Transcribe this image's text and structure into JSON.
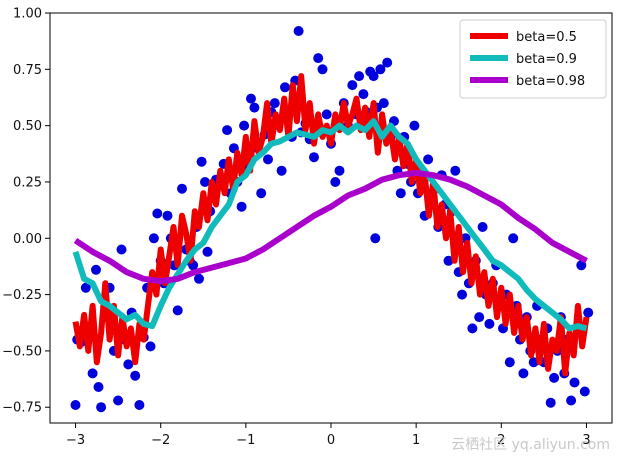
{
  "chart_data": {
    "type": "scatter",
    "xlim": [
      -3.3,
      3.3
    ],
    "ylim": [
      -0.82,
      1.0
    ],
    "xticks": [
      -3,
      -2,
      -1,
      0,
      1,
      2,
      3
    ],
    "xtick_labels": [
      "−3",
      "−2",
      "−1",
      "0",
      "1",
      "2",
      "3"
    ],
    "yticks": [
      -0.75,
      -0.5,
      -0.25,
      0.0,
      0.25,
      0.5,
      0.75,
      1.0
    ],
    "ytick_labels": [
      "−0.75",
      "−0.50",
      "−0.25",
      "0.00",
      "0.25",
      "0.50",
      "0.75",
      "1.00"
    ],
    "grid": false,
    "legend_position": "top-right",
    "scatter_color": "#0000dd",
    "scatter": [
      {
        "x": -3.0,
        "y": -0.74
      },
      {
        "x": -2.98,
        "y": -0.45
      },
      {
        "x": -2.93,
        "y": -0.46
      },
      {
        "x": -2.88,
        "y": -0.22
      },
      {
        "x": -2.8,
        "y": -0.6
      },
      {
        "x": -2.76,
        "y": -0.14
      },
      {
        "x": -2.73,
        "y": -0.66
      },
      {
        "x": -2.7,
        "y": -0.75
      },
      {
        "x": -2.66,
        "y": -0.35
      },
      {
        "x": -2.6,
        "y": -0.22
      },
      {
        "x": -2.55,
        "y": -0.5
      },
      {
        "x": -2.5,
        "y": -0.72
      },
      {
        "x": -2.46,
        "y": -0.05
      },
      {
        "x": -2.42,
        "y": -0.45
      },
      {
        "x": -2.38,
        "y": -0.56
      },
      {
        "x": -2.34,
        "y": -0.33
      },
      {
        "x": -2.3,
        "y": -0.61
      },
      {
        "x": -2.25,
        "y": -0.74
      },
      {
        "x": -2.2,
        "y": -0.44
      },
      {
        "x": -2.16,
        "y": -0.22
      },
      {
        "x": -2.12,
        "y": -0.48
      },
      {
        "x": -2.08,
        "y": 0.0
      },
      {
        "x": -2.04,
        "y": 0.11
      },
      {
        "x": -2.0,
        "y": -0.1
      },
      {
        "x": -1.96,
        "y": -0.2
      },
      {
        "x": -1.92,
        "y": 0.1
      },
      {
        "x": -1.88,
        "y": 0.0
      },
      {
        "x": -1.84,
        "y": -0.12
      },
      {
        "x": -1.8,
        "y": -0.32
      },
      {
        "x": -1.75,
        "y": 0.22
      },
      {
        "x": -1.7,
        "y": -0.05
      },
      {
        "x": -1.66,
        "y": -0.1
      },
      {
        "x": -1.62,
        "y": -0.12
      },
      {
        "x": -1.58,
        "y": 0.05
      },
      {
        "x": -1.55,
        "y": -0.18
      },
      {
        "x": -1.52,
        "y": 0.34
      },
      {
        "x": -1.48,
        "y": 0.25
      },
      {
        "x": -1.45,
        "y": -0.06
      },
      {
        "x": -1.42,
        "y": 0.12
      },
      {
        "x": -1.38,
        "y": 0.18
      },
      {
        "x": -1.35,
        "y": 0.26
      },
      {
        "x": -1.3,
        "y": 0.25
      },
      {
        "x": -1.26,
        "y": 0.33
      },
      {
        "x": -1.22,
        "y": 0.48
      },
      {
        "x": -1.18,
        "y": 0.2
      },
      {
        "x": -1.14,
        "y": 0.4
      },
      {
        "x": -1.1,
        "y": 0.25
      },
      {
        "x": -1.05,
        "y": 0.14
      },
      {
        "x": -1.02,
        "y": 0.5
      },
      {
        "x": -0.98,
        "y": 0.32
      },
      {
        "x": -0.94,
        "y": 0.62
      },
      {
        "x": -0.9,
        "y": 0.58
      },
      {
        "x": -0.86,
        "y": 0.4
      },
      {
        "x": -0.82,
        "y": 0.2
      },
      {
        "x": -0.78,
        "y": 0.46
      },
      {
        "x": -0.74,
        "y": 0.35
      },
      {
        "x": -0.7,
        "y": 0.56
      },
      {
        "x": -0.66,
        "y": 0.6
      },
      {
        "x": -0.62,
        "y": 0.52
      },
      {
        "x": -0.58,
        "y": 0.3
      },
      {
        "x": -0.54,
        "y": 0.67
      },
      {
        "x": -0.5,
        "y": 0.56
      },
      {
        "x": -0.46,
        "y": 0.45
      },
      {
        "x": -0.42,
        "y": 0.7
      },
      {
        "x": -0.38,
        "y": 0.92
      },
      {
        "x": -0.35,
        "y": 0.47
      },
      {
        "x": -0.3,
        "y": 0.51
      },
      {
        "x": -0.25,
        "y": 0.44
      },
      {
        "x": -0.2,
        "y": 0.36
      },
      {
        "x": -0.15,
        "y": 0.8
      },
      {
        "x": -0.1,
        "y": 0.75
      },
      {
        "x": -0.05,
        "y": 0.55
      },
      {
        "x": 0.0,
        "y": 0.42
      },
      {
        "x": 0.05,
        "y": 0.25
      },
      {
        "x": 0.1,
        "y": 0.3
      },
      {
        "x": 0.15,
        "y": 0.6
      },
      {
        "x": 0.2,
        "y": 0.5
      },
      {
        "x": 0.25,
        "y": 0.68
      },
      {
        "x": 0.3,
        "y": 0.55
      },
      {
        "x": 0.33,
        "y": 0.72
      },
      {
        "x": 0.38,
        "y": 0.64
      },
      {
        "x": 0.42,
        "y": 0.56
      },
      {
        "x": 0.46,
        "y": 0.74
      },
      {
        "x": 0.5,
        "y": 0.72
      },
      {
        "x": 0.54,
        "y": 0.58
      },
      {
        "x": 0.58,
        "y": 0.75
      },
      {
        "x": 0.62,
        "y": 0.6
      },
      {
        "x": 0.66,
        "y": 0.78
      },
      {
        "x": 0.7,
        "y": 0.45
      },
      {
        "x": 0.74,
        "y": 0.52
      },
      {
        "x": 0.78,
        "y": 0.3
      },
      {
        "x": 0.52,
        "y": 0.0
      },
      {
        "x": 0.82,
        "y": 0.2
      },
      {
        "x": 0.86,
        "y": 0.45
      },
      {
        "x": 0.9,
        "y": 0.33
      },
      {
        "x": 0.94,
        "y": 0.25
      },
      {
        "x": 0.98,
        "y": 0.5
      },
      {
        "x": 1.02,
        "y": 0.2
      },
      {
        "x": 1.06,
        "y": 0.25
      },
      {
        "x": 1.1,
        "y": 0.1
      },
      {
        "x": 1.14,
        "y": 0.35
      },
      {
        "x": 1.18,
        "y": 0.18
      },
      {
        "x": 1.22,
        "y": 0.22
      },
      {
        "x": 1.26,
        "y": 0.05
      },
      {
        "x": 1.3,
        "y": 0.28
      },
      {
        "x": 1.34,
        "y": 0.15
      },
      {
        "x": 1.38,
        "y": -0.1
      },
      {
        "x": 1.42,
        "y": 0.12
      },
      {
        "x": 1.46,
        "y": 0.3
      },
      {
        "x": 1.5,
        "y": -0.15
      },
      {
        "x": 1.54,
        "y": -0.25
      },
      {
        "x": 1.58,
        "y": 0.0
      },
      {
        "x": 1.62,
        "y": -0.2
      },
      {
        "x": 1.66,
        "y": -0.4
      },
      {
        "x": 1.7,
        "y": -0.1
      },
      {
        "x": 1.74,
        "y": -0.35
      },
      {
        "x": 1.78,
        "y": 0.05
      },
      {
        "x": 1.82,
        "y": -0.25
      },
      {
        "x": 1.86,
        "y": -0.38
      },
      {
        "x": 1.9,
        "y": -0.2
      },
      {
        "x": 1.94,
        "y": -0.12
      },
      {
        "x": 1.98,
        "y": -0.3
      },
      {
        "x": 2.02,
        "y": -0.4
      },
      {
        "x": 2.06,
        "y": -0.25
      },
      {
        "x": 2.1,
        "y": -0.55
      },
      {
        "x": 2.14,
        "y": 0.0
      },
      {
        "x": 2.18,
        "y": -0.3
      },
      {
        "x": 2.22,
        "y": -0.45
      },
      {
        "x": 2.26,
        "y": -0.6
      },
      {
        "x": 2.3,
        "y": -0.35
      },
      {
        "x": 2.34,
        "y": -0.5
      },
      {
        "x": 2.38,
        "y": -0.55
      },
      {
        "x": 2.42,
        "y": -0.3
      },
      {
        "x": 2.46,
        "y": -0.45
      },
      {
        "x": 2.5,
        "y": -0.55
      },
      {
        "x": 2.54,
        "y": -0.4
      },
      {
        "x": 2.58,
        "y": -0.73
      },
      {
        "x": 2.62,
        "y": -0.62
      },
      {
        "x": 2.66,
        "y": -0.5
      },
      {
        "x": 2.7,
        "y": -0.35
      },
      {
        "x": 2.74,
        "y": -0.6
      },
      {
        "x": 2.78,
        "y": -0.45
      },
      {
        "x": 2.82,
        "y": -0.72
      },
      {
        "x": 2.86,
        "y": -0.64
      },
      {
        "x": 2.9,
        "y": -0.4
      },
      {
        "x": 2.94,
        "y": -0.12
      },
      {
        "x": 2.98,
        "y": -0.68
      },
      {
        "x": 3.02,
        "y": -0.33
      }
    ],
    "series": [
      {
        "name": "beta=0.5",
        "color": "#ee0000",
        "linewidth": 6,
        "x": [
          -3.0,
          -2.95,
          -2.9,
          -2.85,
          -2.8,
          -2.75,
          -2.7,
          -2.65,
          -2.6,
          -2.55,
          -2.5,
          -2.45,
          -2.4,
          -2.35,
          -2.3,
          -2.25,
          -2.2,
          -2.15,
          -2.1,
          -2.05,
          -2.0,
          -1.95,
          -1.9,
          -1.85,
          -1.8,
          -1.75,
          -1.7,
          -1.65,
          -1.6,
          -1.55,
          -1.5,
          -1.45,
          -1.4,
          -1.35,
          -1.3,
          -1.25,
          -1.2,
          -1.15,
          -1.1,
          -1.05,
          -1.0,
          -0.95,
          -0.9,
          -0.85,
          -0.8,
          -0.75,
          -0.7,
          -0.65,
          -0.6,
          -0.55,
          -0.5,
          -0.45,
          -0.4,
          -0.35,
          -0.3,
          -0.25,
          -0.2,
          -0.15,
          -0.1,
          -0.05,
          0.0,
          0.05,
          0.1,
          0.15,
          0.2,
          0.25,
          0.3,
          0.35,
          0.4,
          0.45,
          0.5,
          0.55,
          0.6,
          0.65,
          0.7,
          0.75,
          0.8,
          0.85,
          0.9,
          0.95,
          1.0,
          1.05,
          1.1,
          1.15,
          1.2,
          1.25,
          1.3,
          1.35,
          1.4,
          1.45,
          1.5,
          1.55,
          1.6,
          1.65,
          1.7,
          1.75,
          1.8,
          1.85,
          1.9,
          1.95,
          2.0,
          2.05,
          2.1,
          2.15,
          2.2,
          2.25,
          2.3,
          2.35,
          2.4,
          2.45,
          2.5,
          2.55,
          2.6,
          2.65,
          2.7,
          2.75,
          2.8,
          2.85,
          2.9,
          2.95,
          3.0
        ],
        "y": [
          -0.37,
          -0.48,
          -0.34,
          -0.5,
          -0.3,
          -0.55,
          -0.42,
          -0.2,
          -0.45,
          -0.3,
          -0.52,
          -0.35,
          -0.48,
          -0.4,
          -0.55,
          -0.38,
          -0.45,
          -0.3,
          -0.15,
          -0.25,
          -0.05,
          -0.2,
          -0.08,
          0.05,
          -0.12,
          0.1,
          0.02,
          -0.1,
          0.12,
          0.05,
          0.2,
          0.08,
          0.25,
          0.15,
          0.3,
          0.2,
          0.35,
          0.22,
          0.38,
          0.28,
          0.45,
          0.3,
          0.52,
          0.38,
          0.45,
          0.6,
          0.42,
          0.55,
          0.48,
          0.62,
          0.45,
          0.68,
          0.52,
          0.72,
          0.48,
          0.6,
          0.42,
          0.55,
          0.45,
          0.5,
          0.42,
          0.55,
          0.48,
          0.6,
          0.5,
          0.55,
          0.62,
          0.48,
          0.58,
          0.45,
          0.6,
          0.38,
          0.55,
          0.42,
          0.48,
          0.35,
          0.45,
          0.32,
          0.42,
          0.25,
          0.35,
          0.2,
          0.28,
          0.1,
          0.25,
          0.05,
          0.15,
          0.0,
          0.12,
          -0.1,
          0.05,
          -0.15,
          -0.02,
          -0.2,
          -0.08,
          -0.25,
          -0.15,
          -0.3,
          -0.18,
          -0.35,
          -0.22,
          -0.38,
          -0.25,
          -0.42,
          -0.3,
          -0.45,
          -0.35,
          -0.52,
          -0.4,
          -0.55,
          -0.38,
          -0.58,
          -0.45,
          -0.5,
          -0.35,
          -0.6,
          -0.42,
          -0.52,
          -0.3,
          -0.48,
          -0.35
        ]
      },
      {
        "name": "beta=0.9",
        "color": "#11bbbb",
        "linewidth": 6,
        "x": [
          -3.0,
          -2.9,
          -2.8,
          -2.7,
          -2.6,
          -2.5,
          -2.4,
          -2.3,
          -2.2,
          -2.1,
          -2.0,
          -1.9,
          -1.8,
          -1.7,
          -1.6,
          -1.5,
          -1.4,
          -1.3,
          -1.2,
          -1.1,
          -1.0,
          -0.9,
          -0.8,
          -0.7,
          -0.6,
          -0.5,
          -0.4,
          -0.3,
          -0.2,
          -0.1,
          0.0,
          0.1,
          0.2,
          0.3,
          0.4,
          0.5,
          0.6,
          0.7,
          0.8,
          0.9,
          1.0,
          1.1,
          1.2,
          1.3,
          1.4,
          1.5,
          1.6,
          1.7,
          1.8,
          1.9,
          2.0,
          2.1,
          2.2,
          2.3,
          2.4,
          2.5,
          2.6,
          2.7,
          2.8,
          2.9,
          3.0
        ],
        "y": [
          -0.06,
          -0.18,
          -0.2,
          -0.28,
          -0.3,
          -0.33,
          -0.36,
          -0.34,
          -0.38,
          -0.39,
          -0.3,
          -0.22,
          -0.16,
          -0.1,
          -0.05,
          -0.02,
          0.05,
          0.1,
          0.15,
          0.25,
          0.28,
          0.35,
          0.38,
          0.42,
          0.43,
          0.45,
          0.47,
          0.46,
          0.45,
          0.48,
          0.47,
          0.5,
          0.47,
          0.5,
          0.48,
          0.52,
          0.45,
          0.5,
          0.45,
          0.42,
          0.35,
          0.3,
          0.25,
          0.2,
          0.15,
          0.1,
          0.05,
          0.0,
          -0.05,
          -0.1,
          -0.12,
          -0.15,
          -0.18,
          -0.23,
          -0.27,
          -0.3,
          -0.33,
          -0.36,
          -0.4,
          -0.39,
          -0.4
        ]
      },
      {
        "name": "beta=0.98",
        "color": "#aa00cc",
        "linewidth": 6,
        "x": [
          -3.0,
          -2.8,
          -2.6,
          -2.4,
          -2.2,
          -2.0,
          -1.8,
          -1.6,
          -1.4,
          -1.2,
          -1.0,
          -0.8,
          -0.6,
          -0.4,
          -0.2,
          0.0,
          0.2,
          0.4,
          0.6,
          0.8,
          1.0,
          1.2,
          1.4,
          1.6,
          1.8,
          2.0,
          2.2,
          2.4,
          2.6,
          2.8,
          3.0
        ],
        "y": [
          -0.01,
          -0.06,
          -0.1,
          -0.15,
          -0.18,
          -0.19,
          -0.18,
          -0.15,
          -0.13,
          -0.11,
          -0.09,
          -0.05,
          0.0,
          0.05,
          0.1,
          0.14,
          0.19,
          0.22,
          0.26,
          0.28,
          0.29,
          0.28,
          0.26,
          0.23,
          0.19,
          0.15,
          0.09,
          0.04,
          -0.02,
          -0.06,
          -0.1
        ]
      }
    ]
  },
  "watermark": "云栖社区 yq.aliyun.com"
}
